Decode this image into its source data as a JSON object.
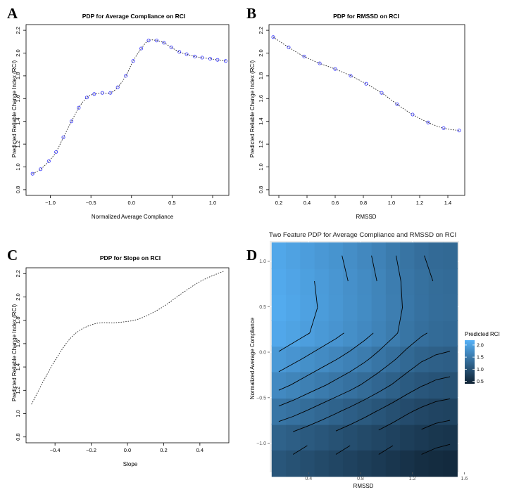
{
  "panels": [
    {
      "letter": "A",
      "title": "PDP for Average Compliance on RCI",
      "xlabel": "Normalized Average Compliance",
      "ylabel": "Predicted Reliable Change Index (RCI)"
    },
    {
      "letter": "B",
      "title": "PDP for RMSSD on RCI",
      "xlabel": "RMSSD",
      "ylabel": "Predicted Reliable Change Index (RCI)"
    },
    {
      "letter": "C",
      "title": "PDP for Slope on RCI",
      "xlabel": "Slope",
      "ylabel": "Predicted Reliable Change Index (RCI)"
    },
    {
      "letter": "D",
      "title": "Two Feature PDP for Average Compliance and RMSSD on RCI",
      "xlabel": "RMSSD",
      "ylabel": "Normalized Average Compliance",
      "legend_title": "Predicted RCI"
    }
  ],
  "chart_data": [
    {
      "type": "line",
      "title": "PDP for Average Compliance on RCI",
      "xlabel": "Normalized Average Compliance",
      "ylabel": "Predicted Reliable Change Index (RCI)",
      "xlim": [
        -1.3,
        1.2
      ],
      "ylim": [
        0.75,
        2.25
      ],
      "xticks": [
        -1.0,
        -0.5,
        0.0,
        0.5,
        1.0
      ],
      "xtick_labels": [
        "−1.0",
        "−0.5",
        "0.0",
        "0.5",
        "1.0"
      ],
      "yticks": [
        0.8,
        1.0,
        1.2,
        1.4,
        1.6,
        1.8,
        2.0,
        2.2
      ],
      "ytick_labels": [
        "0.8",
        "1.0",
        "1.2",
        "1.4",
        "1.6",
        "1.8",
        "2.0",
        "2.2"
      ],
      "x": [
        -1.22,
        -1.12,
        -1.02,
        -0.93,
        -0.84,
        -0.74,
        -0.65,
        -0.55,
        -0.46,
        -0.36,
        -0.26,
        -0.17,
        -0.07,
        0.02,
        0.12,
        0.21,
        0.31,
        0.4,
        0.49,
        0.59,
        0.68,
        0.78,
        0.87,
        0.97,
        1.06,
        1.16
      ],
      "y": [
        0.94,
        0.98,
        1.05,
        1.13,
        1.26,
        1.4,
        1.52,
        1.61,
        1.64,
        1.65,
        1.65,
        1.7,
        1.8,
        1.93,
        2.04,
        2.11,
        2.11,
        2.09,
        2.05,
        2.01,
        1.99,
        1.97,
        1.96,
        1.95,
        1.94,
        1.93
      ],
      "marker": "open-circle",
      "marker_color": "#3333ff",
      "line_style": "dotted"
    },
    {
      "type": "line",
      "title": "PDP for RMSSD on RCI",
      "xlabel": "RMSSD",
      "ylabel": "Predicted Reliable Change Index (RCI)",
      "xlim": [
        0.13,
        1.52
      ],
      "ylim": [
        0.75,
        2.25
      ],
      "xticks": [
        0.2,
        0.4,
        0.6,
        0.8,
        1.0,
        1.2,
        1.4
      ],
      "xtick_labels": [
        "0.2",
        "0.4",
        "0.6",
        "0.8",
        "1.0",
        "1.2",
        "1.4"
      ],
      "yticks": [
        0.8,
        1.0,
        1.2,
        1.4,
        1.6,
        1.8,
        2.0,
        2.2
      ],
      "ytick_labels": [
        "0.8",
        "1.0",
        "1.2",
        "1.4",
        "1.6",
        "1.8",
        "2.0",
        "2.2"
      ],
      "x": [
        0.16,
        0.27,
        0.38,
        0.49,
        0.6,
        0.71,
        0.82,
        0.93,
        1.04,
        1.15,
        1.26,
        1.37,
        1.48
      ],
      "y": [
        2.14,
        2.05,
        1.97,
        1.91,
        1.86,
        1.8,
        1.73,
        1.65,
        1.55,
        1.46,
        1.39,
        1.34,
        1.32
      ],
      "marker": "open-circle",
      "marker_color": "#3333ff",
      "line_style": "dotted"
    },
    {
      "type": "line",
      "title": "PDP for Slope on RCI",
      "xlabel": "Slope",
      "ylabel": "Predicted Reliable Change Index (RCI)",
      "xlim": [
        -0.56,
        0.56
      ],
      "ylim": [
        0.75,
        2.25
      ],
      "xticks": [
        -0.4,
        -0.2,
        0.0,
        0.2,
        0.4
      ],
      "xtick_labels": [
        "−0.4",
        "−0.2",
        "0.0",
        "0.2",
        "0.4"
      ],
      "yticks": [
        0.8,
        1.0,
        1.2,
        1.4,
        1.6,
        1.8,
        2.0,
        2.2
      ],
      "ytick_labels": [
        "0.8",
        "1.0",
        "1.2",
        "1.4",
        "1.6",
        "1.8",
        "2.0",
        "2.2"
      ],
      "x": [
        -0.53,
        -0.41,
        -0.3,
        -0.18,
        -0.06,
        0.06,
        0.18,
        0.3,
        0.41,
        0.53
      ],
      "y": [
        1.08,
        1.43,
        1.67,
        1.77,
        1.78,
        1.81,
        1.9,
        2.03,
        2.14,
        2.22
      ],
      "marker": "none",
      "line_style": "dotted"
    },
    {
      "type": "heatmap",
      "title": "Two Feature PDP for Average Compliance and RMSSD on RCI",
      "xlabel": "RMSSD",
      "ylabel": "Normalized Average Compliance",
      "xlim": [
        0.1,
        1.56
      ],
      "ylim": [
        -1.32,
        1.22
      ],
      "xticks": [
        0.4,
        0.8,
        1.2,
        1.6
      ],
      "xtick_labels": [
        "0.4",
        "0.8",
        "1.2",
        "1.6"
      ],
      "yticks": [
        -1.0,
        -0.5,
        0.0,
        0.5,
        1.0
      ],
      "ytick_labels": [
        "−1.0",
        "−0.5",
        "0.0",
        "0.5",
        "1.0"
      ],
      "cells_x": [
        0.17,
        0.28,
        0.39,
        0.5,
        0.61,
        0.72,
        0.83,
        0.94,
        1.05,
        1.16,
        1.27,
        1.38,
        1.49
      ],
      "cells_y": [
        -1.22,
        -0.93,
        -0.65,
        -0.36,
        -0.07,
        0.21,
        0.49,
        0.78,
        1.06
      ],
      "values": [
        [
          1.05,
          1.0,
          0.95,
          0.9,
          0.85,
          0.8,
          0.75,
          0.7,
          0.65,
          0.6,
          0.55,
          0.52,
          0.5
        ],
        [
          1.2,
          1.15,
          1.1,
          1.05,
          1.0,
          0.95,
          0.9,
          0.85,
          0.8,
          0.75,
          0.7,
          0.66,
          0.64
        ],
        [
          1.45,
          1.4,
          1.34,
          1.28,
          1.22,
          1.16,
          1.1,
          1.04,
          0.98,
          0.92,
          0.87,
          0.83,
          0.81
        ],
        [
          1.7,
          1.64,
          1.58,
          1.52,
          1.46,
          1.4,
          1.33,
          1.26,
          1.19,
          1.12,
          1.06,
          1.02,
          1.0
        ],
        [
          1.9,
          1.84,
          1.78,
          1.72,
          1.66,
          1.6,
          1.53,
          1.45,
          1.37,
          1.29,
          1.22,
          1.18,
          1.16
        ],
        [
          2.08,
          2.02,
          1.96,
          1.9,
          1.84,
          1.77,
          1.7,
          1.62,
          1.53,
          1.44,
          1.37,
          1.32,
          1.3
        ],
        [
          2.12,
          2.06,
          2.0,
          1.93,
          1.87,
          1.8,
          1.73,
          1.65,
          1.56,
          1.47,
          1.4,
          1.35,
          1.33
        ],
        [
          2.1,
          2.04,
          1.98,
          1.92,
          1.86,
          1.79,
          1.72,
          1.64,
          1.55,
          1.46,
          1.39,
          1.34,
          1.32
        ],
        [
          2.07,
          2.01,
          1.95,
          1.89,
          1.83,
          1.76,
          1.69,
          1.61,
          1.52,
          1.43,
          1.36,
          1.31,
          1.29
        ]
      ],
      "legend": {
        "title": "Predicted RCI",
        "ticks": [
          0.5,
          1.0,
          1.5,
          2.0
        ],
        "tick_labels": [
          "0.5",
          "1.0",
          "1.5",
          "2.0"
        ],
        "range": [
          0.4,
          2.2
        ],
        "low_color": "#0f2233",
        "high_color": "#56b1f7",
        "placement": "right"
      },
      "background": "#ebebeb",
      "contours": true,
      "grid": true
    }
  ]
}
